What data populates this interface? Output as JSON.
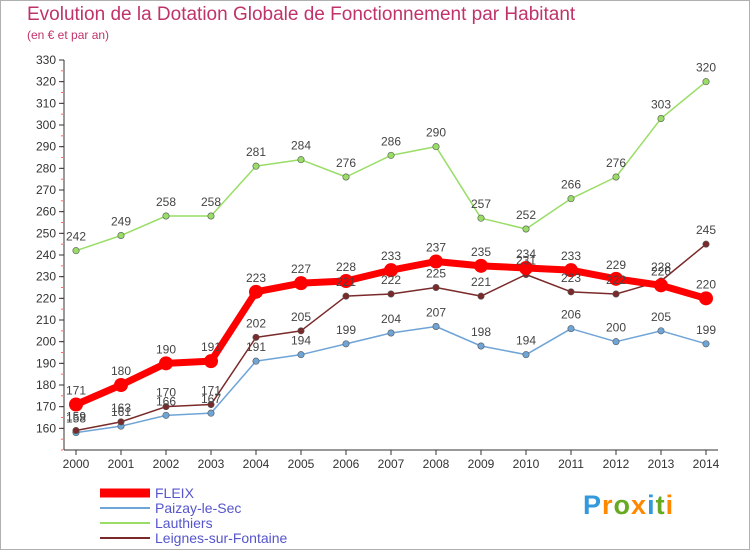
{
  "header": {
    "title": "Evolution de la Dotation Globale de Fonctionnement par Habitant",
    "subtitle": "(en € et par an)"
  },
  "chart_data": {
    "type": "line",
    "title": "Evolution de la Dotation Globale de Fonctionnement par Habitant",
    "subtitle": "(en € et par an)",
    "x": [
      2000,
      2001,
      2002,
      2003,
      2004,
      2005,
      2006,
      2007,
      2008,
      2009,
      2010,
      2011,
      2012,
      2013,
      2014
    ],
    "ylim": [
      150,
      330
    ],
    "yticks": [
      160,
      170,
      180,
      190,
      200,
      210,
      220,
      230,
      240,
      250,
      260,
      270,
      280,
      290,
      300,
      310,
      320,
      330
    ],
    "grid": false,
    "legend_position": "bottom-left",
    "series": [
      {
        "name": "FLEIX",
        "color": "#ff0000",
        "values": [
          171,
          180,
          190,
          191,
          223,
          227,
          228,
          233,
          237,
          235,
          234,
          233,
          229,
          226,
          220
        ]
      },
      {
        "name": "Paizay-le-Sec",
        "color": "#6fa4d6",
        "values": [
          158,
          161,
          166,
          167,
          191,
          194,
          199,
          204,
          207,
          198,
          194,
          206,
          200,
          205,
          199
        ]
      },
      {
        "name": "Lauthiers",
        "color": "#99dd66",
        "values": [
          242,
          249,
          258,
          258,
          281,
          284,
          276,
          286,
          290,
          257,
          252,
          266,
          276,
          303,
          320
        ]
      },
      {
        "name": "Leignes-sur-Fontaine",
        "color": "#7a2a2a",
        "values": [
          159,
          163,
          170,
          171,
          202,
          205,
          221,
          222,
          225,
          221,
          231,
          223,
          222,
          228,
          245
        ]
      }
    ]
  },
  "logo": {
    "letters": [
      "P",
      "r",
      "o",
      "x",
      "i",
      "t",
      "i"
    ],
    "colors": [
      "#3399dd",
      "#ff8800",
      "#66aa22",
      "#ff8800",
      "#3399dd",
      "#66aa22",
      "#ff8800"
    ]
  }
}
